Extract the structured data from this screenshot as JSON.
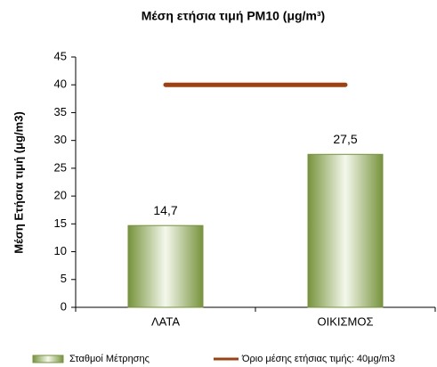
{
  "chart_data": {
    "type": "bar",
    "title": "Μέση ετήσια τιμή PM10 (μg/m³)",
    "y_label": "Μέση Ετήσια τιμή (μg/m3)",
    "categories": [
      "ΛΑΤΑ",
      "ΟΙΚΙΣΜΟΣ"
    ],
    "series": [
      {
        "name": "Σταθμοί Μέτρησης",
        "type": "bar",
        "color": "#77933c",
        "values": [
          14.7,
          27.5
        ],
        "value_labels": [
          "14,7",
          "27,5"
        ]
      },
      {
        "name": "Όριο μέσης ετήσιας τιμής: 40μg/m3",
        "type": "line",
        "color": "#a33f0c",
        "values": [
          40,
          40
        ]
      }
    ],
    "ylim": [
      0,
      45
    ],
    "yticks": [
      0,
      5,
      10,
      15,
      20,
      25,
      30,
      35,
      40,
      45
    ],
    "legend": "bottom"
  }
}
